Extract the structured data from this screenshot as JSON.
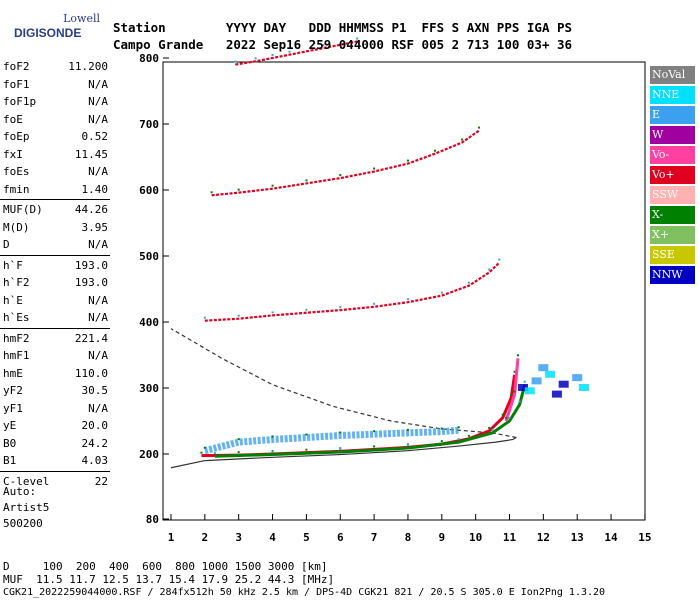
{
  "logo": {
    "line1": "Lowell",
    "line2": "DIGISONDE"
  },
  "header": {
    "row1": "Station        YYYY DAY   DDD HHMMSS P1  FFS S AXN PPS IGA PS",
    "row2": "Campo Grande   2022 Sep16 259 044000 RSF 005 2 713 100 03+ 36"
  },
  "params": [
    {
      "group": [
        {
          "label": "foF2",
          "value": "11.200"
        },
        {
          "label": "foF1",
          "value": "N/A"
        },
        {
          "label": "foF1p",
          "value": "N/A"
        },
        {
          "label": "foE",
          "value": "N/A"
        },
        {
          "label": "foEp",
          "value": "0.52"
        },
        {
          "label": "fxI",
          "value": "11.45"
        },
        {
          "label": "foEs",
          "value": "N/A"
        },
        {
          "label": "fmin",
          "value": "1.40"
        }
      ]
    },
    {
      "group": [
        {
          "label": "MUF(D)",
          "value": "44.26"
        },
        {
          "label": "M(D)",
          "value": "3.95"
        },
        {
          "label": "D",
          "value": "N/A"
        }
      ]
    },
    {
      "group": [
        {
          "label": "h`F",
          "value": "193.0"
        },
        {
          "label": "h`F2",
          "value": "193.0"
        },
        {
          "label": "h`E",
          "value": "N/A"
        },
        {
          "label": "h`Es",
          "value": "N/A"
        }
      ]
    },
    {
      "group": [
        {
          "label": "hmF2",
          "value": "221.4"
        },
        {
          "label": "hmF1",
          "value": "N/A"
        },
        {
          "label": "hmE",
          "value": "110.0"
        },
        {
          "label": "yF2",
          "value": "30.5"
        },
        {
          "label": "yF1",
          "value": "N/A"
        },
        {
          "label": "yE",
          "value": "20.0"
        },
        {
          "label": "B0",
          "value": "24.2"
        },
        {
          "label": "B1",
          "value": "4.03"
        }
      ]
    },
    {
      "group": [
        {
          "label": "C-level",
          "value": "22"
        }
      ]
    }
  ],
  "auto": {
    "line1": "Auto:",
    "line2": "Artist5",
    "line3": "500200"
  },
  "footer": {
    "d_row": "D     100  200  400  600  800 1000 1500 3000 [km]",
    "muf_row": "MUF  11.5 11.7 12.5 13.7 15.4 17.9 25.2 44.3 [MHz]",
    "file_row": "CGK21_2022259044000.RSF / 284fx512h 50 kHz 2.5 km / DPS-4D CGK21 821 / 20.5 S 305.0 E Ion2Png 1.3.20"
  },
  "legend": [
    {
      "label": "NoVal",
      "color": "#808080"
    },
    {
      "label": "NNE",
      "color": "#00e0ff"
    },
    {
      "label": "E",
      "color": "#3ca0f0"
    },
    {
      "label": "W",
      "color": "#a000a0"
    },
    {
      "label": "Vo-",
      "color": "#ff40a0"
    },
    {
      "label": "Vo+",
      "color": "#e00020"
    },
    {
      "label": "SSW",
      "color": "#ffb0b0"
    },
    {
      "label": "X-",
      "color": "#008000"
    },
    {
      "label": "X+",
      "color": "#80c060"
    },
    {
      "label": "SSE",
      "color": "#c8c800"
    },
    {
      "label": "NNW",
      "color": "#0000c0"
    }
  ],
  "chart_data": {
    "type": "scatter",
    "xlim": [
      1,
      15
    ],
    "ylim": [
      80,
      900
    ],
    "x_ticks": [
      "1",
      "2",
      "3",
      "4",
      "5",
      "6",
      "7",
      "8",
      "9",
      "10",
      "11",
      "12",
      "13",
      "14",
      "15"
    ],
    "y_ticks": [
      "80",
      "200",
      "300",
      "400",
      "500",
      "600",
      "700",
      "800",
      "900"
    ],
    "grid": false,
    "traces": [
      {
        "name": "F2 O-trace",
        "color": "#e00020",
        "points": [
          [
            1.9,
            197
          ],
          [
            3,
            198
          ],
          [
            4,
            200
          ],
          [
            5,
            202
          ],
          [
            6,
            204
          ],
          [
            7,
            207
          ],
          [
            8,
            210
          ],
          [
            9,
            215
          ],
          [
            9.8,
            223
          ],
          [
            10.4,
            235
          ],
          [
            10.8,
            255
          ],
          [
            11.05,
            285
          ],
          [
            11.15,
            320
          ]
        ]
      },
      {
        "name": "F2 X-trace",
        "color": "#008000",
        "points": [
          [
            2.3,
            196
          ],
          [
            4,
            199
          ],
          [
            6,
            203
          ],
          [
            8,
            209
          ],
          [
            9.5,
            218
          ],
          [
            10.5,
            232
          ],
          [
            11,
            250
          ],
          [
            11.3,
            275
          ],
          [
            11.45,
            305
          ]
        ]
      },
      {
        "name": "F2 Vo- trace",
        "color": "#ff40a0",
        "points": [
          [
            10.9,
            250
          ],
          [
            11.15,
            290
          ],
          [
            11.25,
            345
          ]
        ]
      },
      {
        "name": "2F2 echo",
        "color": "#e00020",
        "points": [
          [
            2,
            402
          ],
          [
            3,
            405
          ],
          [
            4,
            410
          ],
          [
            5,
            414
          ],
          [
            6,
            418
          ],
          [
            7,
            423
          ],
          [
            8,
            430
          ],
          [
            9,
            440
          ],
          [
            9.8,
            455
          ],
          [
            10.4,
            475
          ],
          [
            10.7,
            490
          ]
        ]
      },
      {
        "name": "3F2 echo",
        "color": "#e00020",
        "points": [
          [
            2.2,
            592
          ],
          [
            3,
            596
          ],
          [
            4,
            602
          ],
          [
            5,
            610
          ],
          [
            6,
            618
          ],
          [
            7,
            628
          ],
          [
            8,
            640
          ],
          [
            8.8,
            655
          ],
          [
            9.6,
            672
          ],
          [
            10.1,
            690
          ]
        ]
      },
      {
        "name": "4F2 echo",
        "color": "#e00020",
        "points": [
          [
            2.9,
            790
          ],
          [
            3.5,
            795
          ],
          [
            4,
            800
          ],
          [
            4.5,
            805
          ],
          [
            5.5,
            815
          ],
          [
            6.5,
            825
          ]
        ]
      },
      {
        "name": "Es-like E-direction echo",
        "color": "#3ca0f0",
        "points": [
          [
            2,
            205
          ],
          [
            3,
            218
          ],
          [
            4,
            222
          ],
          [
            5,
            225
          ],
          [
            6,
            228
          ],
          [
            7,
            230
          ],
          [
            8,
            232
          ],
          [
            9,
            234
          ],
          [
            9.5,
            236
          ]
        ]
      }
    ],
    "profile": [
      [
        1,
        175
      ],
      [
        2,
        188
      ],
      [
        4,
        194
      ],
      [
        6,
        199
      ],
      [
        8,
        205
      ],
      [
        9.5,
        212
      ],
      [
        10.6,
        218
      ],
      [
        11.1,
        222
      ],
      [
        11.2,
        225
      ],
      [
        10.5,
        232
      ],
      [
        9,
        238
      ],
      [
        7.5,
        250
      ],
      [
        5.8,
        272
      ],
      [
        4,
        305
      ],
      [
        2.5,
        345
      ],
      [
        1,
        390
      ]
    ],
    "cluster": [
      [
        11.4,
        300
      ],
      [
        11.8,
        310
      ],
      [
        12.2,
        320
      ],
      [
        12.6,
        305
      ],
      [
        13,
        315
      ],
      [
        13.2,
        300
      ],
      [
        12.4,
        290
      ],
      [
        12,
        330
      ],
      [
        11.6,
        295
      ]
    ]
  }
}
